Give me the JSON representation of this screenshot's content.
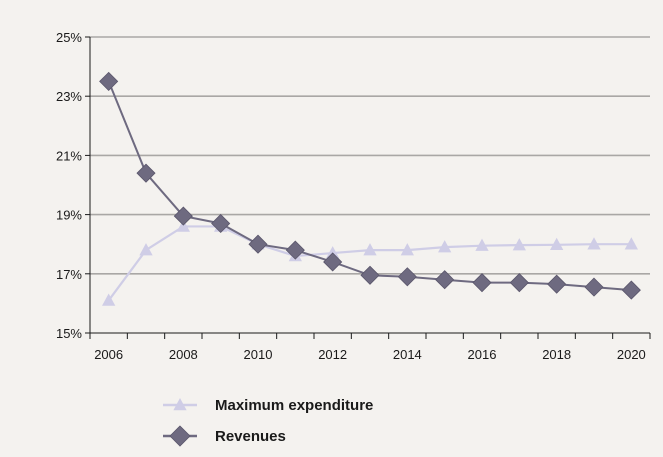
{
  "chart_data": {
    "type": "line",
    "title": "",
    "xlabel": "",
    "ylabel": "",
    "xlim": [
      2005.5,
      2020.5
    ],
    "ylim": [
      15,
      25
    ],
    "y_ticks": [
      15,
      17,
      19,
      21,
      23,
      25
    ],
    "y_tick_labels": [
      "15%",
      "17%",
      "19%",
      "21%",
      "23%",
      "25%"
    ],
    "x_ticks": [
      2006,
      2008,
      2010,
      2012,
      2014,
      2016,
      2018,
      2020
    ],
    "x_tick_labels": [
      "2006",
      "2008",
      "2010",
      "2012",
      "2014",
      "2016",
      "2018",
      "2020"
    ],
    "grid": "horizontal",
    "legend_position": "bottom",
    "series": [
      {
        "name": "Maximum expenditure",
        "marker": "triangle",
        "color": "#cfcde6",
        "x": [
          2006,
          2007,
          2008,
          2009,
          2010,
          2011,
          2012,
          2013,
          2014,
          2015,
          2016,
          2017,
          2018,
          2019,
          2020
        ],
        "values": [
          16.1,
          17.8,
          18.6,
          18.6,
          18.0,
          17.6,
          17.7,
          17.8,
          17.8,
          17.9,
          17.95,
          17.97,
          17.98,
          18.0,
          18.0
        ]
      },
      {
        "name": "Revenues",
        "marker": "diamond",
        "color": "#6e6a80",
        "x": [
          2006,
          2007,
          2008,
          2009,
          2010,
          2011,
          2012,
          2013,
          2014,
          2015,
          2016,
          2017,
          2018,
          2019,
          2020
        ],
        "values": [
          23.5,
          20.4,
          18.95,
          18.7,
          18.0,
          17.8,
          17.4,
          16.95,
          16.9,
          16.8,
          16.7,
          16.7,
          16.65,
          16.55,
          16.45
        ]
      }
    ]
  }
}
